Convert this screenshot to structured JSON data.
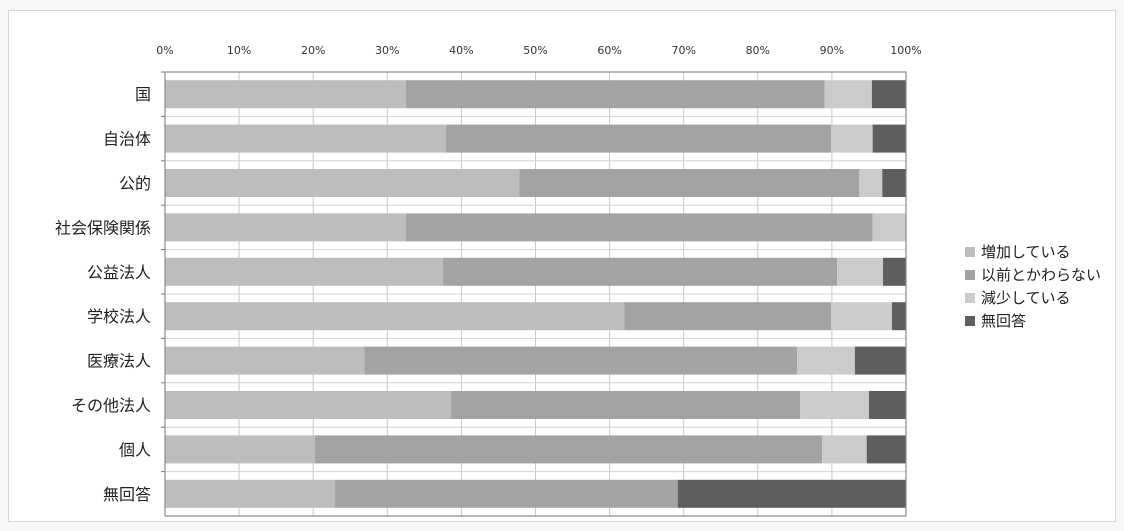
{
  "chart_data": {
    "type": "bar",
    "orientation": "horizontal",
    "stacked": "percent",
    "categories": [
      "国",
      "自治体",
      "公的",
      "社会保険関係",
      "公益法人",
      "学校法人",
      "医療法人",
      "その他法人",
      "個人",
      "無回答"
    ],
    "x_ticks": [
      "0%",
      "10%",
      "20%",
      "30%",
      "40%",
      "50%",
      "60%",
      "70%",
      "80%",
      "90%",
      "100%"
    ],
    "xlim": [
      0,
      100
    ],
    "grid": true,
    "legend_position": "right",
    "series": [
      {
        "name": "増加している",
        "color": "#bdbdbd",
        "values": [
          32.5,
          37.9,
          47.8,
          32.5,
          37.5,
          62.0,
          26.9,
          38.6,
          20.2,
          22.9
        ]
      },
      {
        "name": "以前とかわらない",
        "color": "#a3a3a3",
        "values": [
          56.5,
          52.0,
          45.9,
          63.0,
          53.2,
          27.9,
          58.4,
          47.1,
          68.5,
          46.3
        ]
      },
      {
        "name": "減少している",
        "color": "#cbcbcb",
        "values": [
          6.4,
          5.6,
          3.1,
          4.5,
          6.2,
          8.2,
          7.8,
          9.3,
          6.0,
          0.0
        ]
      },
      {
        "name": "無回答",
        "color": "#5e5e5e",
        "values": [
          4.6,
          4.5,
          3.2,
          0.0,
          3.1,
          1.9,
          6.9,
          5.0,
          5.3,
          30.8
        ]
      }
    ]
  }
}
